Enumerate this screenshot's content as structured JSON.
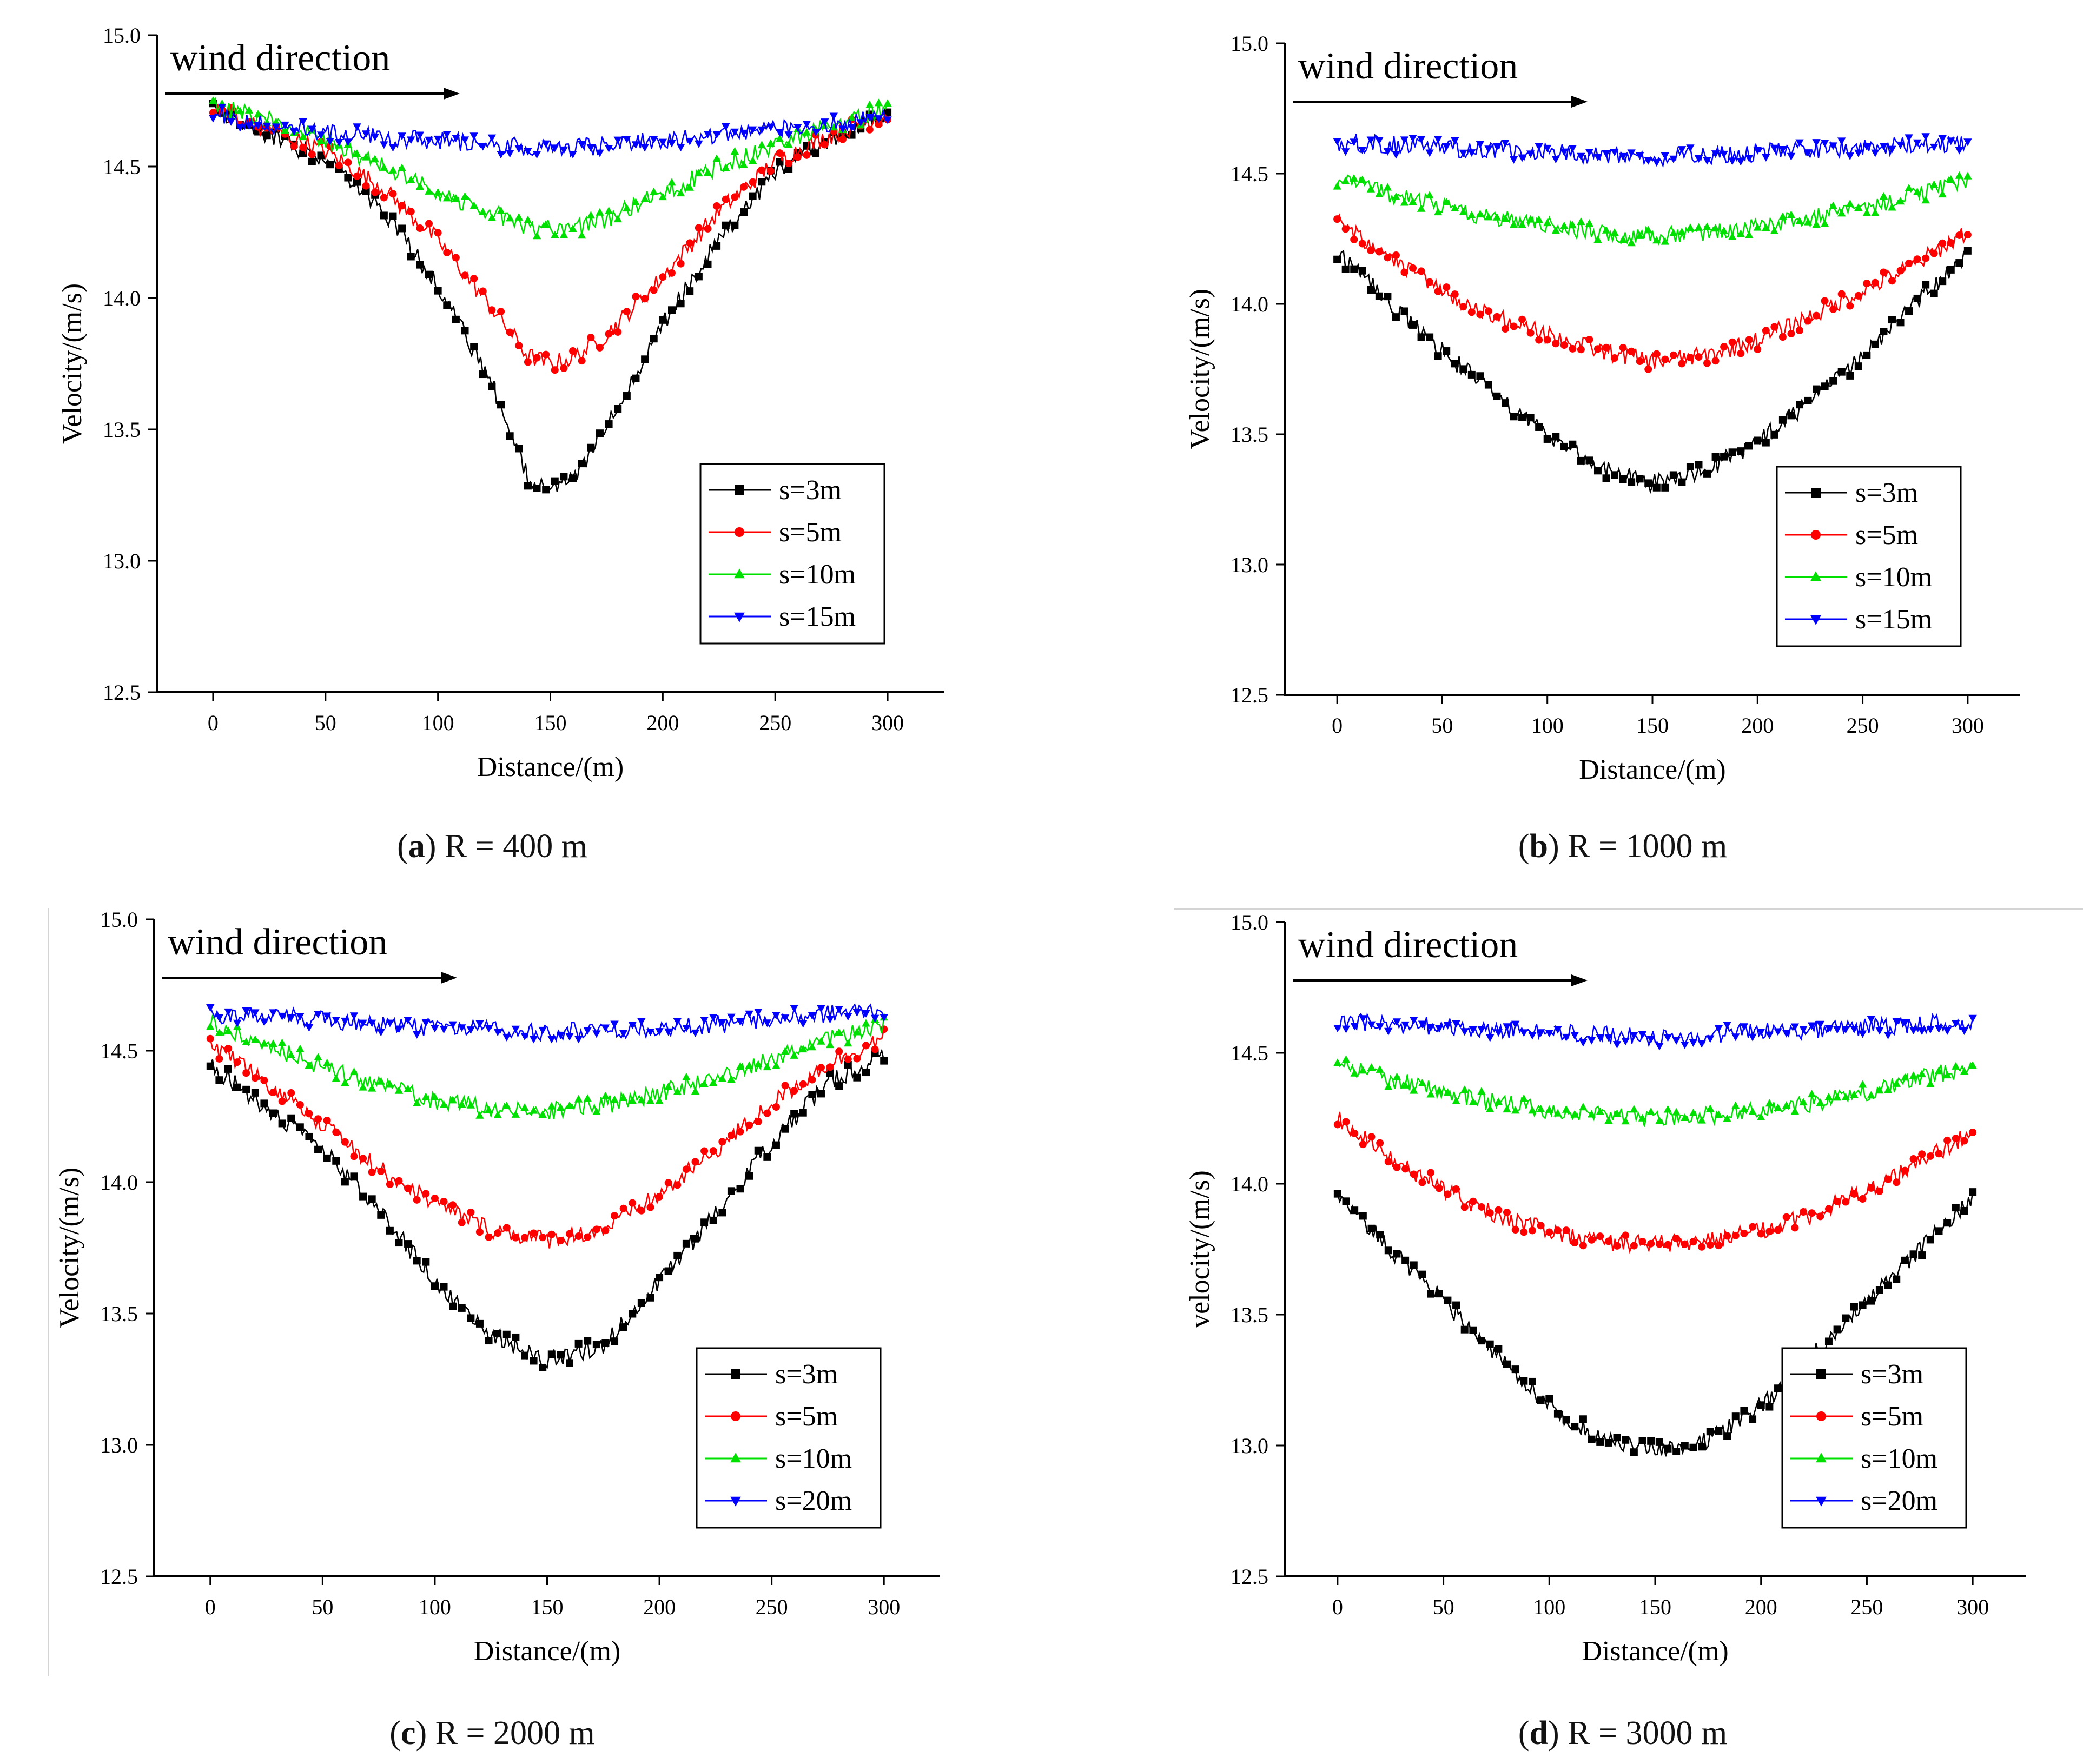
{
  "figure": {
    "panels": [
      {
        "letter": "a",
        "caption_text": "R = 400 m"
      },
      {
        "letter": "b",
        "caption_text": "R = 1000 m"
      },
      {
        "letter": "c",
        "caption_text": "R = 2000 m"
      },
      {
        "letter": "d",
        "caption_text": "R = 3000 m"
      }
    ]
  },
  "colors": {
    "s1": "#000000",
    "s2": "#ff0000",
    "s3": "#00e000",
    "s4": "#0000ff",
    "axis": "#000000"
  },
  "chart_data": [
    {
      "type": "line",
      "panel": "a",
      "annotation": "wind direction",
      "xlabel": "Distance/(m)",
      "ylabel": "Velocity/(m/s)",
      "xlim": [
        -25,
        325
      ],
      "ylim": [
        12.5,
        15.0
      ],
      "x_ticks": [
        0,
        50,
        100,
        150,
        200,
        250,
        300
      ],
      "y_ticks": [
        12.5,
        13.0,
        13.5,
        14.0,
        14.5,
        15.0
      ],
      "y_tick_labels": [
        "12.5",
        "13.0",
        "13.5",
        "14.0",
        "14.5",
        "15.0"
      ],
      "legend_position": "bottom-right",
      "series": [
        {
          "name": "s=3m",
          "marker": "square",
          "color": "#000000",
          "x": [
            0,
            25,
            50,
            75,
            100,
            125,
            140,
            150,
            160,
            175,
            200,
            225,
            250,
            275,
            300
          ],
          "y": [
            14.72,
            14.62,
            14.52,
            14.34,
            14.05,
            13.65,
            13.32,
            13.28,
            13.3,
            13.52,
            13.9,
            14.22,
            14.48,
            14.6,
            14.7
          ]
        },
        {
          "name": "s=5m",
          "marker": "circle",
          "color": "#ff0000",
          "x": [
            0,
            25,
            50,
            75,
            100,
            125,
            140,
            150,
            160,
            175,
            200,
            225,
            250,
            275,
            300
          ],
          "y": [
            14.72,
            14.64,
            14.56,
            14.42,
            14.22,
            13.95,
            13.78,
            13.75,
            13.77,
            13.86,
            14.08,
            14.33,
            14.52,
            14.62,
            14.7
          ]
        },
        {
          "name": "s=10m",
          "marker": "triangle",
          "color": "#00e000",
          "x": [
            0,
            25,
            50,
            75,
            100,
            125,
            140,
            150,
            160,
            175,
            200,
            225,
            250,
            275,
            300
          ],
          "y": [
            14.73,
            14.68,
            14.6,
            14.5,
            14.4,
            14.32,
            14.27,
            14.26,
            14.26,
            14.3,
            14.4,
            14.5,
            14.58,
            14.66,
            14.72
          ]
        },
        {
          "name": "s=15m",
          "marker": "triangle-down",
          "color": "#0000ff",
          "x": [
            0,
            25,
            50,
            75,
            100,
            125,
            150,
            175,
            200,
            225,
            250,
            275,
            300
          ],
          "y": [
            14.7,
            14.66,
            14.63,
            14.61,
            14.6,
            14.58,
            14.57,
            14.58,
            14.6,
            14.62,
            14.64,
            14.66,
            14.69
          ]
        }
      ]
    },
    {
      "type": "line",
      "panel": "b",
      "annotation": "wind direction",
      "xlabel": "Distance/(m)",
      "ylabel": "Velocity/(m/s)",
      "xlim": [
        -25,
        325
      ],
      "ylim": [
        12.5,
        15.0
      ],
      "x_ticks": [
        0,
        50,
        100,
        150,
        200,
        250,
        300
      ],
      "y_ticks": [
        12.5,
        13.0,
        13.5,
        14.0,
        14.5,
        15.0
      ],
      "y_tick_labels": [
        "12.5",
        "13.0",
        "13.5",
        "14.0",
        "14.5",
        "15.0"
      ],
      "legend_position": "bottom-right",
      "series": [
        {
          "name": "s=3m",
          "marker": "square",
          "color": "#000000",
          "x": [
            0,
            25,
            50,
            75,
            100,
            125,
            150,
            175,
            200,
            225,
            250,
            275,
            300
          ],
          "y": [
            14.2,
            14.0,
            13.82,
            13.65,
            13.5,
            13.37,
            13.31,
            13.36,
            13.47,
            13.62,
            13.8,
            14.0,
            14.2
          ]
        },
        {
          "name": "s=5m",
          "marker": "circle",
          "color": "#ff0000",
          "x": [
            0,
            25,
            50,
            75,
            100,
            125,
            150,
            175,
            200,
            225,
            250,
            275,
            300
          ],
          "y": [
            14.32,
            14.18,
            14.05,
            13.95,
            13.88,
            13.82,
            13.78,
            13.8,
            13.86,
            13.95,
            14.05,
            14.15,
            14.28
          ]
        },
        {
          "name": "s=10m",
          "marker": "triangle",
          "color": "#00e000",
          "x": [
            0,
            25,
            50,
            75,
            100,
            125,
            150,
            175,
            200,
            225,
            250,
            275,
            300
          ],
          "y": [
            14.48,
            14.42,
            14.37,
            14.33,
            14.3,
            14.27,
            14.26,
            14.27,
            14.3,
            14.33,
            14.37,
            14.42,
            14.47
          ]
        },
        {
          "name": "s=15m",
          "marker": "triangle-down",
          "color": "#0000ff",
          "x": [
            0,
            25,
            50,
            75,
            100,
            125,
            150,
            175,
            200,
            225,
            250,
            275,
            300
          ],
          "y": [
            14.62,
            14.61,
            14.6,
            14.59,
            14.58,
            14.57,
            14.56,
            14.57,
            14.58,
            14.59,
            14.6,
            14.61,
            14.62
          ]
        }
      ]
    },
    {
      "type": "line",
      "panel": "c",
      "annotation": "wind direction",
      "xlabel": "Distance/(m)",
      "ylabel": "Velocity/(m/s)",
      "xlim": [
        -25,
        325
      ],
      "ylim": [
        12.5,
        15.0
      ],
      "x_ticks": [
        0,
        50,
        100,
        150,
        200,
        250,
        300
      ],
      "y_ticks": [
        12.5,
        13.0,
        13.5,
        14.0,
        14.5,
        15.0
      ],
      "y_tick_labels": [
        "12.5",
        "13.0",
        "13.5",
        "14.0",
        "14.5",
        "15.0"
      ],
      "legend_position": "bottom-right",
      "series": [
        {
          "name": "s=3m",
          "marker": "square",
          "color": "#000000",
          "x": [
            0,
            25,
            50,
            75,
            100,
            125,
            150,
            175,
            200,
            225,
            250,
            275,
            300
          ],
          "y": [
            14.45,
            14.28,
            14.12,
            13.9,
            13.62,
            13.42,
            13.32,
            13.38,
            13.62,
            13.88,
            14.15,
            14.38,
            14.48
          ]
        },
        {
          "name": "s=5m",
          "marker": "circle",
          "color": "#ff0000",
          "x": [
            0,
            25,
            50,
            75,
            100,
            125,
            150,
            175,
            200,
            225,
            250,
            275,
            300
          ],
          "y": [
            14.52,
            14.38,
            14.22,
            14.05,
            13.92,
            13.82,
            13.78,
            13.82,
            13.95,
            14.12,
            14.3,
            14.45,
            14.55
          ]
        },
        {
          "name": "s=10m",
          "marker": "triangle",
          "color": "#00e000",
          "x": [
            0,
            25,
            50,
            75,
            100,
            125,
            150,
            175,
            200,
            225,
            250,
            275,
            300
          ],
          "y": [
            14.6,
            14.52,
            14.44,
            14.37,
            14.31,
            14.28,
            14.27,
            14.29,
            14.34,
            14.4,
            14.47,
            14.54,
            14.6
          ]
        },
        {
          "name": "s=20m",
          "marker": "triangle-down",
          "color": "#0000ff",
          "x": [
            0,
            25,
            50,
            75,
            100,
            125,
            150,
            175,
            200,
            225,
            250,
            275,
            300
          ],
          "y": [
            14.64,
            14.63,
            14.62,
            14.6,
            14.59,
            14.58,
            14.57,
            14.58,
            14.59,
            14.6,
            14.62,
            14.64,
            14.66
          ]
        }
      ]
    },
    {
      "type": "line",
      "panel": "d",
      "annotation": "wind direction",
      "xlabel": "Distance/(m)",
      "ylabel": "velocity/(m/s)",
      "xlim": [
        -25,
        325
      ],
      "ylim": [
        12.5,
        15.0
      ],
      "x_ticks": [
        0,
        50,
        100,
        150,
        200,
        250,
        300
      ],
      "y_ticks": [
        12.5,
        13.0,
        13.5,
        14.0,
        14.5,
        15.0
      ],
      "y_tick_labels": [
        "12.5",
        "13.0",
        "13.5",
        "14.0",
        "14.5",
        "15.0"
      ],
      "legend_position": "bottom-right",
      "series": [
        {
          "name": "s=3m",
          "marker": "square",
          "color": "#000000",
          "x": [
            0,
            25,
            50,
            75,
            100,
            125,
            150,
            175,
            200,
            225,
            250,
            275,
            300
          ],
          "y": [
            13.95,
            13.75,
            13.55,
            13.35,
            13.15,
            13.02,
            12.98,
            13.02,
            13.15,
            13.35,
            13.55,
            13.75,
            13.95
          ]
        },
        {
          "name": "s=5m",
          "marker": "circle",
          "color": "#ff0000",
          "x": [
            0,
            25,
            50,
            75,
            100,
            125,
            150,
            175,
            200,
            225,
            250,
            275,
            300
          ],
          "y": [
            14.25,
            14.1,
            13.98,
            13.88,
            13.82,
            13.78,
            13.77,
            13.78,
            13.82,
            13.88,
            13.98,
            14.08,
            14.2
          ]
        },
        {
          "name": "s=10m",
          "marker": "triangle",
          "color": "#00e000",
          "x": [
            0,
            25,
            50,
            75,
            100,
            125,
            150,
            175,
            200,
            225,
            250,
            275,
            300
          ],
          "y": [
            14.45,
            14.4,
            14.35,
            14.31,
            14.28,
            14.26,
            14.25,
            14.26,
            14.28,
            14.31,
            14.35,
            14.4,
            14.45
          ]
        },
        {
          "name": "s=20m",
          "marker": "triangle-down",
          "color": "#0000ff",
          "x": [
            0,
            25,
            50,
            75,
            100,
            125,
            150,
            175,
            200,
            225,
            250,
            275,
            300
          ],
          "y": [
            14.62,
            14.61,
            14.6,
            14.59,
            14.58,
            14.57,
            14.56,
            14.57,
            14.58,
            14.59,
            14.6,
            14.61,
            14.62
          ]
        }
      ]
    }
  ]
}
